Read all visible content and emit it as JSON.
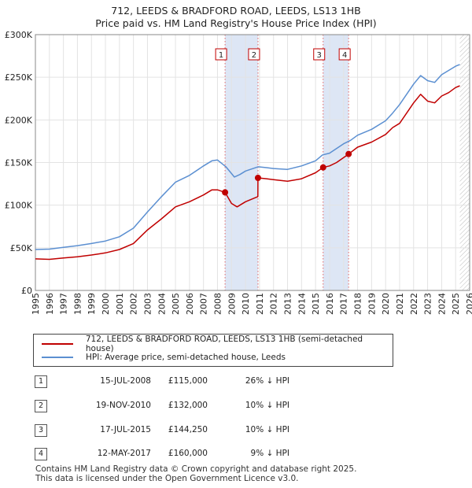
{
  "title_line1": "712, LEEDS & BRADFORD ROAD, LEEDS, LS13 1HB",
  "title_line2": "Price paid vs. HM Land Registry's House Price Index (HPI)",
  "chart_data": {
    "type": "line",
    "ylim": [
      0,
      300000
    ],
    "xlim": [
      1995.0,
      2026.0
    ],
    "yticks": [
      0,
      50000,
      100000,
      150000,
      200000,
      250000,
      300000
    ],
    "ytick_labels": [
      "£0",
      "£50K",
      "£100K",
      "£150K",
      "£200K",
      "£250K",
      "£300K"
    ],
    "xticks": [
      "1995",
      "1996",
      "1997",
      "1998",
      "1999",
      "2000",
      "2001",
      "2002",
      "2003",
      "2004",
      "2005",
      "2006",
      "2007",
      "2008",
      "2009",
      "2010",
      "2011",
      "2012",
      "2013",
      "2014",
      "2015",
      "2016",
      "2017",
      "2018",
      "2019",
      "2020",
      "2021",
      "2022",
      "2023",
      "2024",
      "2025",
      "2026"
    ],
    "series": [
      {
        "name": "HPI: Average price, semi-detached house, Leeds",
        "color": "#5b8fd1",
        "points": [
          [
            1995.0,
            48000
          ],
          [
            1996.0,
            48500
          ],
          [
            1997.0,
            50500
          ],
          [
            1998.0,
            52500
          ],
          [
            1999.0,
            55000
          ],
          [
            2000.0,
            58000
          ],
          [
            2001.0,
            63000
          ],
          [
            2002.0,
            73000
          ],
          [
            2003.0,
            92000
          ],
          [
            2004.0,
            110000
          ],
          [
            2005.0,
            127000
          ],
          [
            2006.0,
            135000
          ],
          [
            2007.0,
            146000
          ],
          [
            2007.6,
            152000
          ],
          [
            2008.0,
            153000
          ],
          [
            2008.6,
            145000
          ],
          [
            2009.2,
            133000
          ],
          [
            2009.6,
            136000
          ],
          [
            2010.0,
            140000
          ],
          [
            2010.9,
            145000
          ],
          [
            2011.5,
            144000
          ],
          [
            2012.0,
            143000
          ],
          [
            2013.0,
            142000
          ],
          [
            2014.0,
            146000
          ],
          [
            2015.0,
            152000
          ],
          [
            2015.5,
            159000
          ],
          [
            2016.0,
            161000
          ],
          [
            2017.0,
            172000
          ],
          [
            2017.5,
            176000
          ],
          [
            2018.0,
            182000
          ],
          [
            2019.0,
            189000
          ],
          [
            2020.0,
            199000
          ],
          [
            2020.5,
            208000
          ],
          [
            2021.0,
            218000
          ],
          [
            2022.0,
            242000
          ],
          [
            2022.5,
            252000
          ],
          [
            2023.0,
            246000
          ],
          [
            2023.5,
            244000
          ],
          [
            2024.0,
            253000
          ],
          [
            2024.5,
            258000
          ],
          [
            2025.0,
            263000
          ],
          [
            2025.3,
            265000
          ]
        ]
      },
      {
        "name": "712, LEEDS & BRADFORD ROAD, LEEDS, LS13 1HB (semi-detached house)",
        "color": "#c00000",
        "points": [
          [
            1995.0,
            37000
          ],
          [
            1996.0,
            36500
          ],
          [
            1997.0,
            38000
          ],
          [
            1998.0,
            39500
          ],
          [
            1999.0,
            41500
          ],
          [
            2000.0,
            44000
          ],
          [
            2001.0,
            48000
          ],
          [
            2002.0,
            55000
          ],
          [
            2003.0,
            71000
          ],
          [
            2004.0,
            84000
          ],
          [
            2005.0,
            98000
          ],
          [
            2006.0,
            104000
          ],
          [
            2007.0,
            112000
          ],
          [
            2007.6,
            118000
          ],
          [
            2008.0,
            118000
          ],
          [
            2008.54,
            115000
          ],
          [
            2009.0,
            102000
          ],
          [
            2009.4,
            98000
          ],
          [
            2010.0,
            104000
          ],
          [
            2010.88,
            110000
          ],
          [
            2010.89,
            132000
          ],
          [
            2011.5,
            131000
          ],
          [
            2012.0,
            130000
          ],
          [
            2013.0,
            128000
          ],
          [
            2014.0,
            131000
          ],
          [
            2015.0,
            138000
          ],
          [
            2015.54,
            144250
          ],
          [
            2016.0,
            146000
          ],
          [
            2016.5,
            150000
          ],
          [
            2017.36,
            160000
          ],
          [
            2018.0,
            168000
          ],
          [
            2019.0,
            174000
          ],
          [
            2020.0,
            183000
          ],
          [
            2020.5,
            191000
          ],
          [
            2021.0,
            196000
          ],
          [
            2022.0,
            220000
          ],
          [
            2022.5,
            230000
          ],
          [
            2023.0,
            222000
          ],
          [
            2023.5,
            220000
          ],
          [
            2024.0,
            228000
          ],
          [
            2024.5,
            232000
          ],
          [
            2025.0,
            238000
          ],
          [
            2025.3,
            240000
          ]
        ]
      }
    ],
    "sales": [
      {
        "id": "1",
        "x": 2008.54,
        "price": 115000
      },
      {
        "id": "2",
        "x": 2010.89,
        "price": 132000
      },
      {
        "id": "3",
        "x": 2015.54,
        "price": 144250
      },
      {
        "id": "4",
        "x": 2017.36,
        "price": 160000
      }
    ],
    "shaded_periods": [
      [
        2008.54,
        2010.89
      ],
      [
        2015.54,
        2017.36
      ]
    ],
    "future_from": 2025.3
  },
  "legend": {
    "property": "712, LEEDS & BRADFORD ROAD, LEEDS, LS13 1HB (semi-detached house)",
    "hpi": "HPI: Average price, semi-detached house, Leeds"
  },
  "transactions": [
    {
      "num": "1",
      "date": "15-JUL-2008",
      "price": "£115,000",
      "hpi": "26% ↓ HPI"
    },
    {
      "num": "2",
      "date": "19-NOV-2010",
      "price": "£132,000",
      "hpi": "10% ↓ HPI"
    },
    {
      "num": "3",
      "date": "17-JUL-2015",
      "price": "£144,250",
      "hpi": "10% ↓ HPI"
    },
    {
      "num": "4",
      "date": "12-MAY-2017",
      "price": "£160,000",
      "hpi": "9% ↓ HPI"
    }
  ],
  "footer_line1": "Contains HM Land Registry data © Crown copyright and database right 2025.",
  "footer_line2": "This data is licensed under the Open Government Licence v3.0."
}
